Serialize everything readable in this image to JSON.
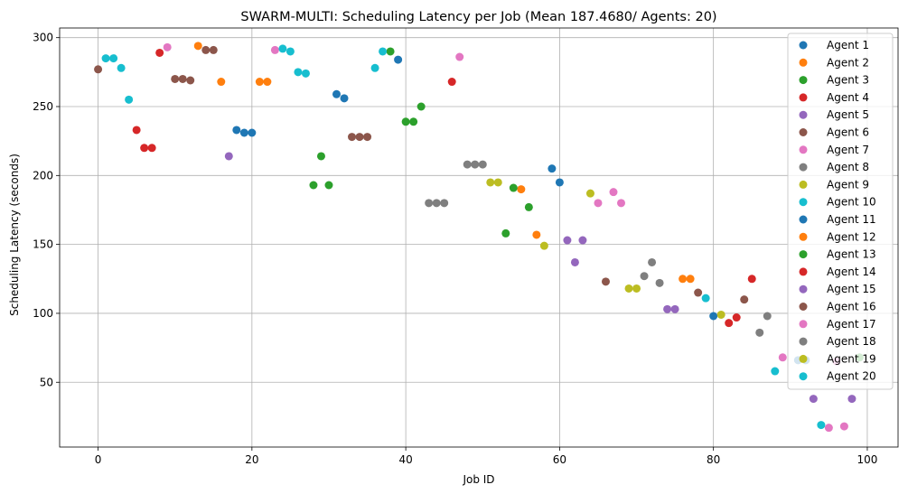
{
  "chart_data": {
    "type": "scatter",
    "title": "SWARM-MULTI: Scheduling Latency per Job (Mean 187.4680/ Agents: 20)",
    "xlabel": "Job ID",
    "ylabel": "Scheduling Latency (seconds)",
    "xlim": [
      -5,
      104
    ],
    "ylim": [
      3,
      307
    ],
    "xticks": [
      0,
      20,
      40,
      60,
      80,
      100
    ],
    "yticks": [
      50,
      100,
      150,
      200,
      250,
      300
    ],
    "grid": true,
    "legend_position": "top-right",
    "series": [
      {
        "name": "Agent 1",
        "color": "#1f77b4",
        "points": [
          [
            18,
            233
          ],
          [
            19,
            231
          ],
          [
            20,
            231
          ],
          [
            31,
            259
          ],
          [
            32,
            256
          ],
          [
            39,
            284
          ],
          [
            59,
            205
          ],
          [
            60,
            195
          ],
          [
            80,
            98
          ]
        ]
      },
      {
        "name": "Agent 2",
        "color": "#ff7f0e",
        "points": [
          [
            13,
            294
          ],
          [
            16,
            268
          ],
          [
            21,
            268
          ],
          [
            22,
            268
          ],
          [
            55,
            190
          ],
          [
            57,
            157
          ],
          [
            76,
            125
          ],
          [
            77,
            125
          ]
        ]
      },
      {
        "name": "Agent 3",
        "color": "#2ca02c",
        "points": [
          [
            28,
            193
          ],
          [
            29,
            214
          ],
          [
            30,
            193
          ],
          [
            38,
            290
          ],
          [
            40,
            239
          ],
          [
            41,
            239
          ],
          [
            42,
            250
          ],
          [
            53,
            158
          ],
          [
            54,
            191
          ],
          [
            56,
            177
          ]
        ]
      },
      {
        "name": "Agent 4",
        "color": "#d62728",
        "points": [
          [
            5,
            233
          ],
          [
            6,
            220
          ],
          [
            7,
            220
          ],
          [
            8,
            289
          ],
          [
            46,
            268
          ],
          [
            82,
            93
          ],
          [
            83,
            97
          ],
          [
            85,
            125
          ]
        ]
      },
      {
        "name": "Agent 5",
        "color": "#9467bd",
        "points": [
          [
            17,
            214
          ],
          [
            61,
            153
          ],
          [
            62,
            137
          ],
          [
            63,
            153
          ],
          [
            74,
            103
          ],
          [
            75,
            103
          ],
          [
            98,
            38
          ]
        ]
      },
      {
        "name": "Agent 6",
        "color": "#8c564b",
        "points": [
          [
            0,
            277
          ],
          [
            10,
            270
          ],
          [
            11,
            270
          ],
          [
            12,
            269
          ],
          [
            14,
            291
          ],
          [
            15,
            291
          ],
          [
            33,
            228
          ],
          [
            34,
            228
          ],
          [
            35,
            228
          ],
          [
            66,
            123
          ],
          [
            78,
            115
          ],
          [
            84,
            110
          ]
        ]
      },
      {
        "name": "Agent 7",
        "color": "#e377c2",
        "points": [
          [
            9,
            293
          ],
          [
            23,
            291
          ],
          [
            47,
            286
          ],
          [
            65,
            180
          ],
          [
            67,
            188
          ],
          [
            68,
            180
          ],
          [
            89,
            68
          ],
          [
            95,
            17
          ],
          [
            97,
            18
          ]
        ]
      },
      {
        "name": "Agent 8",
        "color": "#7f7f7f",
        "points": [
          [
            43,
            180
          ],
          [
            44,
            180
          ],
          [
            45,
            180
          ],
          [
            48,
            208
          ],
          [
            49,
            208
          ],
          [
            50,
            208
          ],
          [
            71,
            127
          ],
          [
            72,
            137
          ],
          [
            73,
            122
          ],
          [
            86,
            86
          ],
          [
            87,
            98
          ]
        ]
      },
      {
        "name": "Agent 9",
        "color": "#bcbd22",
        "points": [
          [
            51,
            195
          ],
          [
            52,
            195
          ],
          [
            58,
            149
          ],
          [
            64,
            187
          ],
          [
            69,
            118
          ],
          [
            70,
            118
          ],
          [
            81,
            99
          ]
        ]
      },
      {
        "name": "Agent 10",
        "color": "#17becf",
        "points": [
          [
            1,
            285
          ],
          [
            2,
            285
          ],
          [
            3,
            278
          ],
          [
            4,
            255
          ],
          [
            24,
            292
          ],
          [
            25,
            290
          ],
          [
            26,
            275
          ],
          [
            27,
            274
          ],
          [
            36,
            278
          ],
          [
            37,
            290
          ],
          [
            79,
            111
          ],
          [
            88,
            58
          ],
          [
            94,
            19
          ]
        ]
      },
      {
        "name": "Agent 11",
        "color": "#1f77b4",
        "points": [
          [
            91,
            66
          ],
          [
            92,
            66
          ]
        ]
      },
      {
        "name": "Agent 12",
        "color": "#ff7f0e",
        "points": []
      },
      {
        "name": "Agent 13",
        "color": "#2ca02c",
        "points": [
          [
            99,
            68
          ]
        ]
      },
      {
        "name": "Agent 14",
        "color": "#d62728",
        "points": []
      },
      {
        "name": "Agent 15",
        "color": "#9467bd",
        "points": [
          [
            93,
            38
          ]
        ]
      },
      {
        "name": "Agent 16",
        "color": "#8c564b",
        "points": []
      },
      {
        "name": "Agent 17",
        "color": "#e377c2",
        "points": [
          [
            96,
            65
          ]
        ]
      },
      {
        "name": "Agent 18",
        "color": "#7f7f7f",
        "points": []
      },
      {
        "name": "Agent 19",
        "color": "#bcbd22",
        "points": []
      },
      {
        "name": "Agent 20",
        "color": "#17becf",
        "points": []
      }
    ]
  }
}
